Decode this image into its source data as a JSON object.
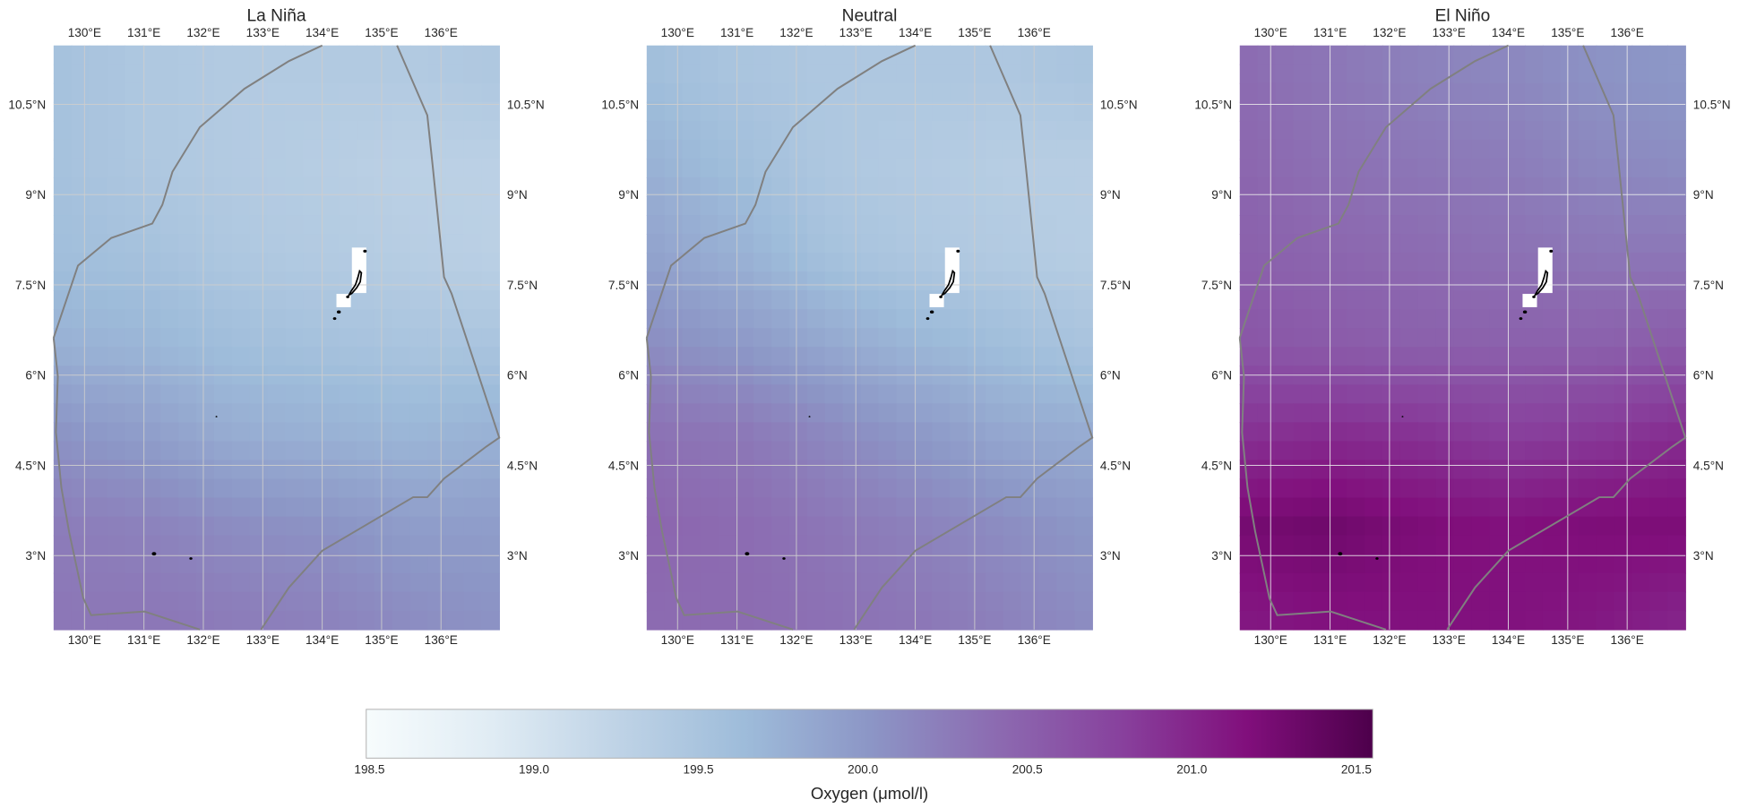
{
  "figure": {
    "panels": [
      {
        "title": "La Niña",
        "field": [
          [
            199.55,
            199.45,
            199.4,
            199.4,
            199.4,
            199.45
          ],
          [
            199.55,
            199.45,
            199.4,
            199.35,
            199.3,
            199.3
          ],
          [
            199.6,
            199.55,
            199.45,
            199.4,
            199.35,
            199.3
          ],
          [
            199.75,
            199.7,
            199.6,
            199.55,
            199.5,
            199.5
          ],
          [
            200.05,
            199.95,
            199.8,
            199.75,
            199.7,
            199.75
          ],
          [
            200.25,
            200.2,
            200.1,
            200.05,
            199.95,
            199.95
          ],
          [
            200.3,
            200.3,
            200.25,
            200.2,
            200.1,
            200.05
          ]
        ]
      },
      {
        "title": "Neutral",
        "field": [
          [
            199.6,
            199.5,
            199.45,
            199.45,
            199.45,
            199.5
          ],
          [
            199.75,
            199.6,
            199.45,
            199.4,
            199.35,
            199.35
          ],
          [
            199.9,
            199.75,
            199.55,
            199.45,
            199.4,
            199.35
          ],
          [
            200.1,
            200.0,
            199.85,
            199.7,
            199.6,
            199.5
          ],
          [
            200.35,
            200.3,
            200.15,
            200.0,
            199.85,
            199.8
          ],
          [
            200.45,
            200.4,
            200.3,
            200.2,
            200.1,
            200.0
          ],
          [
            200.4,
            200.4,
            200.35,
            200.3,
            200.2,
            200.1
          ]
        ]
      },
      {
        "title": "El Niño",
        "field": [
          [
            200.4,
            200.3,
            200.2,
            200.15,
            200.05,
            200.0
          ],
          [
            200.45,
            200.35,
            200.3,
            200.25,
            200.15,
            200.1
          ],
          [
            200.5,
            200.45,
            200.4,
            200.35,
            200.3,
            200.3
          ],
          [
            200.6,
            200.55,
            200.5,
            200.5,
            200.5,
            200.55
          ],
          [
            200.9,
            200.95,
            200.9,
            200.8,
            200.85,
            200.95
          ],
          [
            201.25,
            201.3,
            201.2,
            201.15,
            201.2,
            201.2
          ],
          [
            201.1,
            201.15,
            201.15,
            201.15,
            201.1,
            201.0
          ]
        ]
      }
    ],
    "field_grid": {
      "lat": [
        11,
        9.5,
        8,
        6.5,
        5,
        3.5,
        2
      ],
      "lon": [
        129.5,
        131,
        132.5,
        134,
        135.5,
        137
      ]
    },
    "extent": {
      "lon": [
        129.48,
        136.98
      ],
      "lat": [
        1.77,
        11.48
      ]
    },
    "lon_ticks": [
      130,
      131,
      132,
      133,
      134,
      135,
      136
    ],
    "lon_tick_labels": [
      "130°E",
      "131°E",
      "132°E",
      "133°E",
      "134°E",
      "135°E",
      "136°E"
    ],
    "lat_ticks": [
      10.5,
      9,
      7.5,
      6,
      4.5,
      3
    ],
    "lat_tick_labels": [
      "10.5°N",
      "9°N",
      "7.5°N",
      "6°N",
      "4.5°N",
      "3°N"
    ],
    "eez_boundary": [
      [
        [
          129.48,
          6.62
        ],
        [
          129.89,
          7.82
        ],
        [
          130.45,
          8.28
        ],
        [
          131.14,
          8.52
        ],
        [
          131.31,
          8.83
        ],
        [
          131.48,
          9.38
        ],
        [
          131.94,
          10.12
        ],
        [
          132.69,
          10.76
        ],
        [
          133.44,
          11.22
        ],
        [
          134.0,
          11.48
        ]
      ],
      [
        [
          135.26,
          11.48
        ],
        [
          135.77,
          10.32
        ],
        [
          135.86,
          9.47
        ],
        [
          136.05,
          7.63
        ],
        [
          136.18,
          7.35
        ],
        [
          136.98,
          4.96
        ],
        [
          136.76,
          4.81
        ],
        [
          136.05,
          4.28
        ],
        [
          135.77,
          3.97
        ],
        [
          135.53,
          3.97
        ],
        [
          134.0,
          3.08
        ],
        [
          133.44,
          2.47
        ],
        [
          132.97,
          1.77
        ]
      ],
      [
        [
          129.48,
          6.62
        ],
        [
          129.55,
          5.98
        ],
        [
          129.52,
          5.05
        ],
        [
          129.61,
          4.13
        ],
        [
          129.74,
          3.4
        ],
        [
          129.98,
          2.29
        ],
        [
          130.11,
          2.01
        ],
        [
          131.01,
          2.07
        ],
        [
          131.94,
          1.77
        ]
      ]
    ],
    "colorbar": {
      "label": "Oxygen (μmol/l)",
      "colormap": "BuPu",
      "vmin": 198.49,
      "vmax": 201.55,
      "ticks": [
        198.5,
        199.0,
        199.5,
        200.0,
        200.5,
        201.0,
        201.5
      ],
      "tick_labels": [
        "198.5",
        "199.0",
        "199.5",
        "200.0",
        "200.5",
        "201.0",
        "201.5"
      ],
      "colors": [
        "#f7fcfd",
        "#e0ecf4",
        "#bfd3e6",
        "#9ebcda",
        "#8c96c6",
        "#8c6bb1",
        "#88419d",
        "#810f7c",
        "#4d004b"
      ]
    },
    "boundary_color": "#808080",
    "land_color": "#000000"
  }
}
